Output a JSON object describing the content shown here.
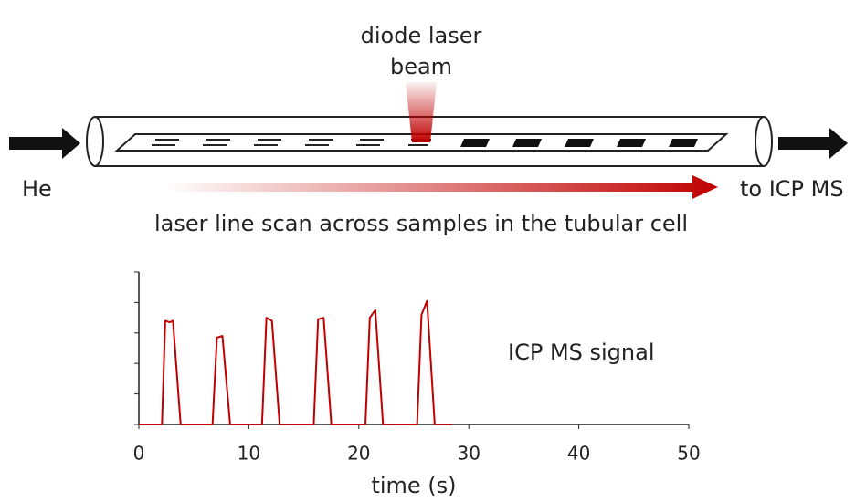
{
  "diagram": {
    "laser_label": [
      "diode laser",
      "beam"
    ],
    "inlet_label": "He",
    "outlet_label": "to ICP MS",
    "scan_label": "laser line scan across samples in the tubular cell",
    "signal_label": "ICP MS signal"
  },
  "chart_data": {
    "type": "line",
    "xlabel": "time (s)",
    "x": [
      0,
      2.1,
      2.4,
      2.8,
      3.1,
      3.8,
      6.7,
      7.1,
      7.6,
      8.3,
      11.2,
      11.6,
      12.1,
      12.8,
      15.9,
      16.3,
      16.8,
      17.5,
      20.6,
      21.0,
      21.5,
      22.2,
      25.3,
      25.7,
      26.2,
      26.9,
      28.5
    ],
    "series": [
      {
        "name": "ICP MS signal",
        "color": "#c00000",
        "values": [
          0,
          0,
          3.4,
          3.35,
          3.4,
          0,
          0,
          2.85,
          2.9,
          0,
          0,
          3.5,
          3.4,
          0,
          0,
          3.45,
          3.5,
          0,
          0,
          3.5,
          3.75,
          0,
          0,
          3.6,
          4.05,
          0,
          0
        ]
      }
    ],
    "xlim": [
      0,
      50
    ],
    "xticks": [
      0,
      10,
      20,
      30,
      40,
      50
    ],
    "ylim": [
      0,
      5
    ],
    "yticks": [
      0,
      1,
      2,
      3,
      4,
      5
    ]
  }
}
